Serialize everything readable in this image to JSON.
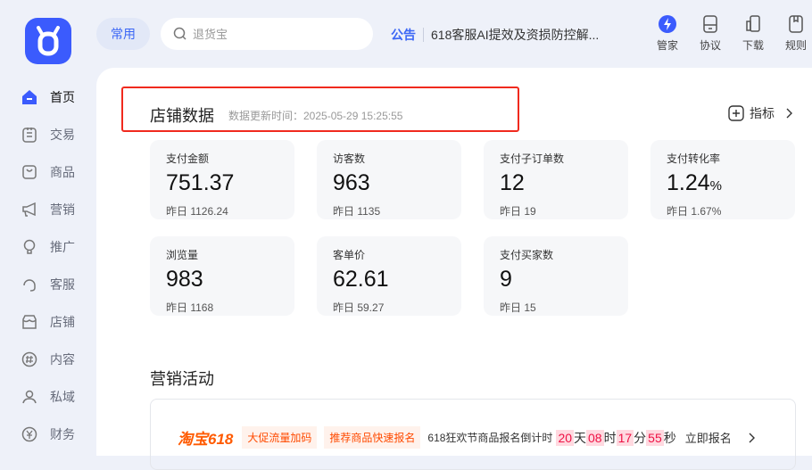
{
  "header": {
    "pill": "常用",
    "search_placeholder": "退货宝",
    "notice_tag": "公告",
    "notice_text": "618客服AI提效及资损防控解...",
    "tools": [
      {
        "icon": "lightning-icon",
        "label": "管家"
      },
      {
        "icon": "agreement-icon",
        "label": "协议"
      },
      {
        "icon": "download-icon",
        "label": "下载"
      },
      {
        "icon": "rules-icon",
        "label": "规则"
      }
    ]
  },
  "sidebar": {
    "items": [
      {
        "label": "首页",
        "icon": "home-icon"
      },
      {
        "label": "交易",
        "icon": "trade-icon"
      },
      {
        "label": "商品",
        "icon": "goods-icon"
      },
      {
        "label": "营销",
        "icon": "megaphone-icon"
      },
      {
        "label": "推广",
        "icon": "bulb-icon"
      },
      {
        "label": "客服",
        "icon": "headset-icon"
      },
      {
        "label": "店铺",
        "icon": "store-icon"
      },
      {
        "label": "内容",
        "icon": "hashtag-icon"
      },
      {
        "label": "私域",
        "icon": "users-icon"
      },
      {
        "label": "财务",
        "icon": "yuan-icon"
      }
    ]
  },
  "store": {
    "title": "店铺数据",
    "update": "数据更新时间：2025-05-29 15:25:55",
    "metric_btn": "指标",
    "cards": [
      {
        "label": "支付金额",
        "value": "751.37",
        "unit": "",
        "yesterday": "昨日 1126.24"
      },
      {
        "label": "访客数",
        "value": "963",
        "unit": "",
        "yesterday": "昨日 1135"
      },
      {
        "label": "支付子订单数",
        "value": "12",
        "unit": "",
        "yesterday": "昨日 19"
      },
      {
        "label": "支付转化率",
        "value": "1.24",
        "unit": "%",
        "yesterday": "昨日 1.67%"
      },
      {
        "label": "浏览量",
        "value": "983",
        "unit": "",
        "yesterday": "昨日 1168"
      },
      {
        "label": "客单价",
        "value": "62.61",
        "unit": "",
        "yesterday": "昨日 59.27"
      },
      {
        "label": "支付买家数",
        "value": "9",
        "unit": "",
        "yesterday": "昨日 15"
      }
    ]
  },
  "marketing": {
    "title": "营销活动",
    "brand": "淘宝618",
    "chip1": "大促流量加码",
    "chip2": "推荐商品快速报名",
    "countdown_label": "618狂欢节商品报名倒计时",
    "days": "20",
    "d": "天",
    "hours": "08",
    "h": "时",
    "minutes": "17",
    "m": "分",
    "seconds": "55",
    "s": "秒",
    "signup": "立即报名"
  },
  "colors": {
    "accent": "#3b5bfd",
    "highlight_box": "#f02a1e",
    "promo": "#ff4a00"
  }
}
